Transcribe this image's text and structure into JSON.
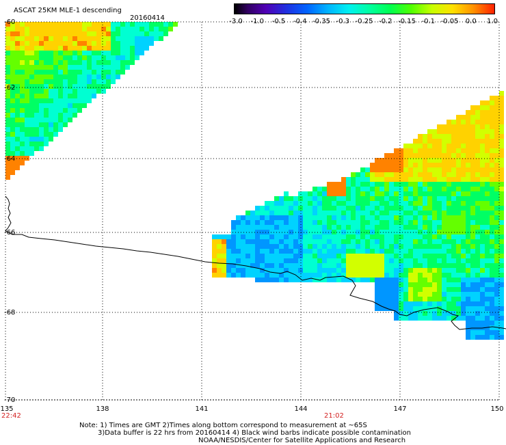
{
  "title": "ASCAT 25KM MLE-1 descending",
  "date": "20160414",
  "colorbar": {
    "labels": [
      "-3.0",
      "-1.0",
      "-0.5",
      "-0.4",
      "-0.35",
      "-0.3",
      "-0.25",
      "-0.2",
      "-0.15",
      "-0.1",
      "-0.05",
      "0.0",
      "1.0"
    ],
    "colors": [
      "#000000",
      "#3c0078",
      "#5000b4",
      "#2828dc",
      "#0050ff",
      "#0096ff",
      "#00d2ff",
      "#00ffd2",
      "#00ff64",
      "#64ff00",
      "#d2ff00",
      "#ffd200",
      "#ff8200",
      "#ff2800"
    ]
  },
  "axes": {
    "lon_labels": [
      "135",
      "138",
      "141",
      "144",
      "147",
      "150"
    ],
    "lat_labels": [
      "-60",
      "-62",
      "-64",
      "-66",
      "-68",
      "-70"
    ],
    "lon_range": [
      135,
      150
    ],
    "lat_range": [
      -60,
      -70
    ]
  },
  "times": {
    "left": "22:42",
    "middle": "21:02"
  },
  "notes": {
    "line1": "Note: 1) Times are GMT 2)Times along bottom correspond to measurement at ~65S",
    "line2": "3)Data buffer is 22 hrs from 20160414 4) Black wind barbs indicate possible contamination",
    "line3": "NOAA/NESDIS/Center for Satellite Applications and Research"
  }
}
